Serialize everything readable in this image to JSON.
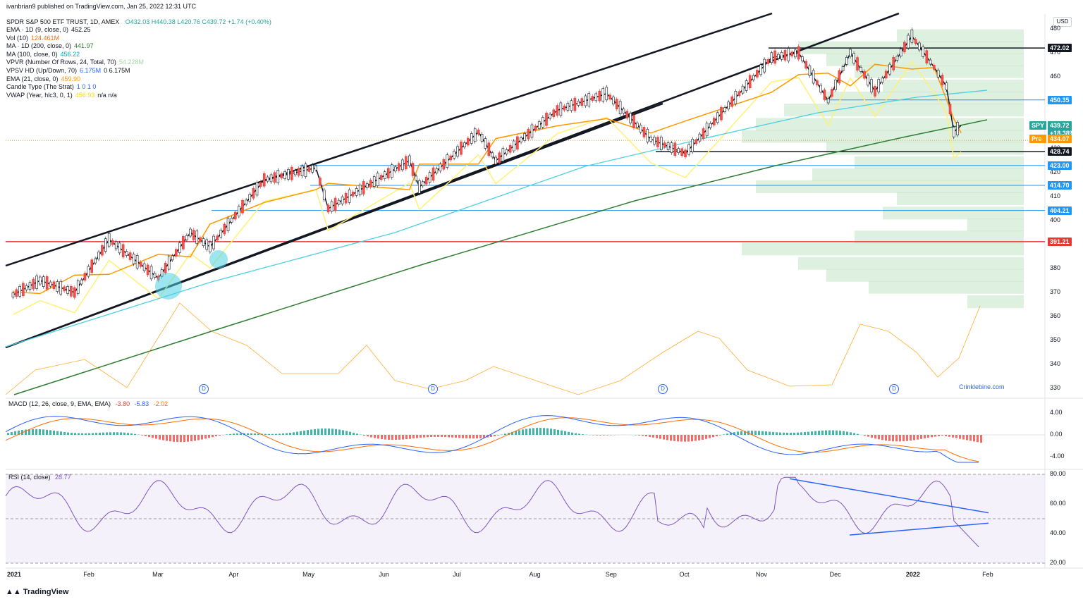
{
  "header": {
    "published": "ivanbrian9 published on TradingView.com, Jan 25, 2022 12:31 UTC",
    "symbol_title": "SPDR S&P 500 ETF TRUST, 1D, AMEX",
    "ohlc": "O432.03 H440.38 L420.76 C439.72 +1.74 (+0.40%)",
    "currency": "USD"
  },
  "indicators": [
    {
      "name": "EMA · 1D (9, close, 0)",
      "value": "452.25",
      "value2": "",
      "color": "#131722"
    },
    {
      "name": "Vol (10)",
      "value": "124.461M",
      "value2": "",
      "color": "#ff6d00"
    },
    {
      "name": "MA · 1D (200, close, 0)",
      "value": "441.97",
      "value2": "",
      "color": "#2e7d32"
    },
    {
      "name": "MA (100, close, 0)",
      "value": "456.22",
      "value2": "",
      "color": "#00acc1"
    },
    {
      "name": "VPVR (Number Of Rows, 24, Total, 70)",
      "value": "54.228M",
      "value2": "",
      "color": "#a5d6a7"
    },
    {
      "name": "VPSV HD (Up/Down, 70)",
      "value": "6.175M",
      "value2": "0  6.175M",
      "color": "#2962ff"
    },
    {
      "name": "EMA (21, close, 0)",
      "value": "459.90",
      "value2": "",
      "color": "#ff9800"
    },
    {
      "name": "Candle Type (The Strat)",
      "value": "1  0  1  0",
      "value2": "",
      "color": "#2962ff"
    },
    {
      "name": "VWAP (Year, hlc3, 0, 1)",
      "value": "456.93",
      "value2": "n/a  n/a",
      "color": "#f5d90a"
    }
  ],
  "price_labels": [
    {
      "text": "472.02",
      "price": 472.02,
      "bg": "#131722"
    },
    {
      "text": "450.35",
      "price": 450.35,
      "bg": "#2196f3"
    },
    {
      "text": "428.74",
      "price": 428.74,
      "bg": "#131722"
    },
    {
      "text": "423.00",
      "price": 423.0,
      "bg": "#2196f3"
    },
    {
      "text": "414.70",
      "price": 414.7,
      "bg": "#2196f3"
    },
    {
      "text": "404.21",
      "price": 404.21,
      "bg": "#2196f3"
    },
    {
      "text": "391.21",
      "price": 391.21,
      "bg": "#e53935"
    }
  ],
  "spy_label": {
    "symbol": "SPY",
    "price": "439.72",
    "change": "+18.38%",
    "pre": "Pre",
    "pre_price": "434.07"
  },
  "macd": {
    "title": "MACD (12, 26, close, 9, EMA, EMA)",
    "v1": "-3.80",
    "v2": "-5.83",
    "v3": "-2.02",
    "ticks": [
      "4.00",
      "0.00",
      "-4.00"
    ]
  },
  "rsi": {
    "title": "RSI (14, close)",
    "value": "28.77",
    "ticks": [
      "80.00",
      "60.00",
      "40.00",
      "20.00"
    ]
  },
  "watermark": "Crinklebine.com",
  "brand": "TradingView",
  "chart_data": {
    "type": "candlestick",
    "title": "SPDR S&P 500 ETF TRUST, 1D, AMEX",
    "y_ticks": [
      480,
      470,
      460,
      450,
      440,
      430,
      420,
      410,
      400,
      390,
      380,
      370,
      360,
      350,
      340,
      330
    ],
    "ylim": [
      327,
      483
    ],
    "x_labels": [
      "2021",
      "Feb",
      "Mar",
      "Apr",
      "May",
      "Jun",
      "Jul",
      "Aug",
      "Sep",
      "Oct",
      "Nov",
      "Dec",
      "Jan",
      "2022",
      "Feb"
    ],
    "x_labels_display": [
      "2021",
      "Feb",
      "Mar",
      "Apr",
      "May",
      "Jun",
      "Jul",
      "Aug",
      "Sep",
      "Oct",
      "Nov",
      "Dec",
      "2022",
      "Feb"
    ],
    "close_series": [
      {
        "date": "2021-01-04",
        "value": 369
      },
      {
        "date": "2021-01-15",
        "value": 375
      },
      {
        "date": "2021-01-29",
        "value": 370
      },
      {
        "date": "2021-02-12",
        "value": 392
      },
      {
        "date": "2021-03-04",
        "value": 376
      },
      {
        "date": "2021-03-17",
        "value": 395
      },
      {
        "date": "2021-03-25",
        "value": 389
      },
      {
        "date": "2021-04-16",
        "value": 417
      },
      {
        "date": "2021-05-07",
        "value": 422
      },
      {
        "date": "2021-05-12",
        "value": 405
      },
      {
        "date": "2021-06-14",
        "value": 425
      },
      {
        "date": "2021-06-18",
        "value": 414
      },
      {
        "date": "2021-07-12",
        "value": 437
      },
      {
        "date": "2021-07-19",
        "value": 425
      },
      {
        "date": "2021-08-13",
        "value": 446
      },
      {
        "date": "2021-09-02",
        "value": 453
      },
      {
        "date": "2021-09-20",
        "value": 434
      },
      {
        "date": "2021-10-04",
        "value": 428
      },
      {
        "date": "2021-11-08",
        "value": 468
      },
      {
        "date": "2021-11-19",
        "value": 470
      },
      {
        "date": "2021-12-01",
        "value": 450
      },
      {
        "date": "2021-12-10",
        "value": 470
      },
      {
        "date": "2021-12-20",
        "value": 454
      },
      {
        "date": "2022-01-04",
        "value": 477
      },
      {
        "date": "2022-01-13",
        "value": 464
      },
      {
        "date": "2022-01-18",
        "value": 456
      },
      {
        "date": "2022-01-21",
        "value": 437
      },
      {
        "date": "2022-01-24",
        "value": 439.72
      }
    ],
    "series": [
      {
        "name": "EMA · 1D (9, close, 0)",
        "color": "#131722"
      },
      {
        "name": "EMA (21, close, 0)",
        "color": "#ff9800"
      },
      {
        "name": "MA (100, close, 0)",
        "color": "#4dd0e1"
      },
      {
        "name": "MA · 1D (200, close, 0)",
        "color": "#2e7d32"
      },
      {
        "name": "VWAP (Year, hlc3, 0, 1)",
        "color": "#fff176"
      }
    ],
    "horizontal_levels": [
      472.02,
      450.35,
      428.74,
      423.0,
      414.7,
      404.21,
      391.21
    ],
    "volume_profile_rows": [
      {
        "price": 477,
        "rel": 0.45
      },
      {
        "price": 472,
        "rel": 0.8
      },
      {
        "price": 467,
        "rel": 0.7
      },
      {
        "price": 462,
        "rel": 0.6
      },
      {
        "price": 456,
        "rel": 0.5
      },
      {
        "price": 451,
        "rel": 0.7
      },
      {
        "price": 446,
        "rel": 0.85
      },
      {
        "price": 440,
        "rel": 0.95
      },
      {
        "price": 435,
        "rel": 1.0
      },
      {
        "price": 430,
        "rel": 0.7
      },
      {
        "price": 424,
        "rel": 0.6
      },
      {
        "price": 419,
        "rel": 0.75
      },
      {
        "price": 414,
        "rel": 0.95
      },
      {
        "price": 409,
        "rel": 0.45
      },
      {
        "price": 403,
        "rel": 0.5
      },
      {
        "price": 398,
        "rel": 0.2
      },
      {
        "price": 393,
        "rel": 0.6
      },
      {
        "price": 388,
        "rel": 1.0
      },
      {
        "price": 382,
        "rel": 0.8
      },
      {
        "price": 377,
        "rel": 0.7
      },
      {
        "price": 372,
        "rel": 0.55
      },
      {
        "price": 366,
        "rel": 0.2
      }
    ],
    "macd_range": [
      -5,
      6
    ],
    "rsi_range": [
      20,
      80
    ]
  }
}
